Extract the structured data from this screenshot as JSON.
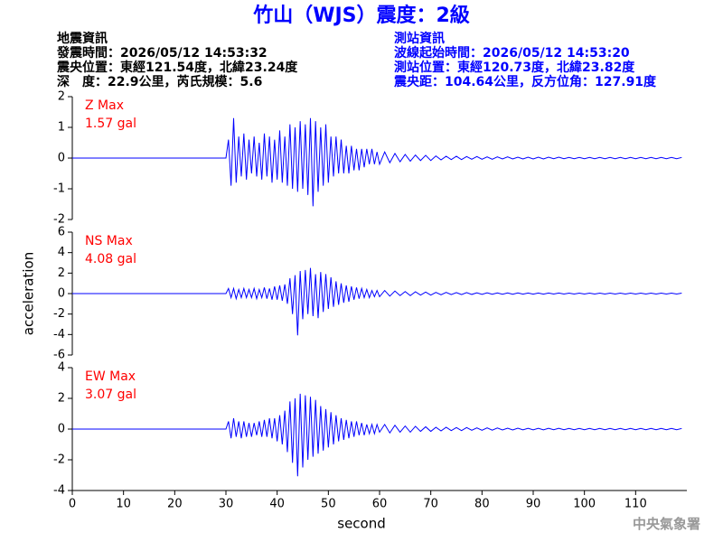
{
  "header": {
    "title": "竹山（WJS）震度：2級",
    "left": [
      "地震資訊",
      "發震時間：2026/05/12 14:53:32",
      "震央位置：東經121.54度，北緯23.24度",
      "深　度：22.9公里，芮氏規模：5.6"
    ],
    "right": [
      "測站資訊",
      "波線起始時間：2026/05/12 14:53:20",
      "測站位置：東經120.73度，北緯23.82度",
      "震央距：104.64公里，反方位角：127.91度"
    ],
    "footer": "中央氣象署"
  },
  "chart_data": [
    {
      "type": "line",
      "annotations": [
        "Z Max",
        "1.57 gal"
      ],
      "color": "#0000ff",
      "xlim": [
        0,
        120
      ],
      "ylim": [
        -2,
        2
      ],
      "yticks": [
        -2,
        -1,
        0,
        1,
        2
      ],
      "x": [
        0,
        30,
        30.5,
        31,
        31.5,
        32,
        32.5,
        33,
        33.5,
        34,
        34.5,
        35,
        35.5,
        36,
        36.5,
        37,
        37.5,
        38,
        38.5,
        39,
        39.5,
        40,
        40.5,
        41,
        41.5,
        42,
        42.5,
        43,
        43.5,
        44,
        44.5,
        45,
        45.5,
        46,
        46.5,
        47,
        47.5,
        48,
        48.5,
        49,
        49.5,
        50,
        50.5,
        51,
        51.5,
        52,
        52.5,
        53,
        53.5,
        54,
        54.5,
        55,
        55.5,
        56,
        56.5,
        57,
        57.5,
        58,
        58.5,
        59,
        59.5,
        60,
        61,
        62,
        63,
        64,
        65,
        66,
        67,
        68,
        69,
        70,
        71,
        72,
        73,
        74,
        75,
        76,
        77,
        78,
        79,
        80,
        81,
        82,
        83,
        84,
        85,
        86,
        87,
        88,
        89,
        90,
        91,
        92,
        93,
        94,
        95,
        96,
        97,
        98,
        99,
        100,
        101,
        102,
        103,
        104,
        105,
        106,
        107,
        108,
        109,
        110,
        111,
        112,
        113,
        114,
        115,
        116,
        117,
        118,
        119
      ],
      "values": [
        0,
        0,
        0.6,
        -0.9,
        1.3,
        -0.8,
        0.7,
        -0.6,
        0.8,
        -0.7,
        0.6,
        -0.5,
        0.7,
        -0.6,
        0.5,
        -0.7,
        0.8,
        -0.6,
        0.7,
        -0.8,
        0.6,
        -0.7,
        0.9,
        -0.8,
        0.7,
        -0.9,
        1.1,
        -1.0,
        1.0,
        -1.1,
        1.2,
        -1.0,
        1.1,
        -1.2,
        1.3,
        -1.57,
        1.2,
        -1.1,
        1.0,
        -0.9,
        1.1,
        -0.8,
        0.7,
        -0.6,
        0.7,
        -0.5,
        0.6,
        -0.5,
        0.4,
        -0.5,
        0.4,
        -0.4,
        0.3,
        -0.4,
        0.3,
        -0.3,
        0.3,
        -0.2,
        0.3,
        -0.2,
        0.2,
        -0.2,
        0.2,
        -0.15,
        0.15,
        -0.12,
        0.12,
        -0.1,
        0.1,
        -0.08,
        0.09,
        -0.08,
        0.07,
        -0.06,
        0.06,
        -0.05,
        0.06,
        -0.05,
        0.05,
        -0.04,
        0.05,
        -0.04,
        0.04,
        -0.04,
        0.04,
        -0.03,
        0.04,
        -0.03,
        0.03,
        -0.03,
        0.03,
        -0.03,
        0.03,
        -0.03,
        0.03,
        -0.02,
        0.03,
        -0.02,
        0.02,
        -0.02,
        0.02,
        -0.02,
        0.02,
        -0.02,
        0.02,
        -0.02,
        0.02,
        -0.02,
        0.02,
        -0.02,
        0.02,
        -0.02,
        0.02,
        -0.02,
        0.02,
        -0.02,
        0.02,
        -0.02,
        0.02,
        -0.02,
        0.02
      ]
    },
    {
      "type": "line",
      "annotations": [
        "NS Max",
        "4.08 gal"
      ],
      "color": "#0000ff",
      "ylabel": "acceleration",
      "xlim": [
        0,
        120
      ],
      "ylim": [
        -6,
        6
      ],
      "yticks": [
        -6,
        -4,
        -2,
        0,
        2,
        4,
        6
      ],
      "x": [
        0,
        30,
        30.5,
        31,
        31.5,
        32,
        32.5,
        33,
        33.5,
        34,
        34.5,
        35,
        35.5,
        36,
        36.5,
        37,
        37.5,
        38,
        38.5,
        39,
        39.5,
        40,
        40.5,
        41,
        41.5,
        42,
        42.5,
        43,
        43.5,
        44,
        44.5,
        45,
        45.5,
        46,
        46.5,
        47,
        47.5,
        48,
        48.5,
        49,
        49.5,
        50,
        50.5,
        51,
        51.5,
        52,
        52.5,
        53,
        53.5,
        54,
        54.5,
        55,
        55.5,
        56,
        56.5,
        57,
        57.5,
        58,
        58.5,
        59,
        59.5,
        60,
        61,
        62,
        63,
        64,
        65,
        66,
        67,
        68,
        69,
        70,
        71,
        72,
        73,
        74,
        75,
        76,
        77,
        78,
        79,
        80,
        81,
        82,
        83,
        84,
        85,
        86,
        87,
        88,
        89,
        90,
        91,
        92,
        93,
        94,
        95,
        96,
        97,
        98,
        99,
        100,
        101,
        102,
        103,
        104,
        105,
        106,
        107,
        108,
        109,
        110,
        111,
        112,
        113,
        114,
        115,
        116,
        117,
        118,
        119
      ],
      "values": [
        0,
        0,
        0.5,
        -0.4,
        0.5,
        -0.5,
        0.4,
        -0.4,
        0.5,
        -0.4,
        0.4,
        -0.4,
        0.5,
        -0.5,
        0.4,
        -0.4,
        0.6,
        -0.5,
        0.5,
        -0.6,
        0.7,
        -0.6,
        0.8,
        -0.7,
        0.9,
        -1.0,
        1.5,
        -2.0,
        1.8,
        -4.08,
        2.2,
        -2.5,
        2.3,
        -2.0,
        2.5,
        -2.2,
        1.9,
        -2.4,
        2.1,
        -1.8,
        1.9,
        -1.5,
        1.6,
        -1.3,
        1.2,
        -1.1,
        1.0,
        -0.9,
        0.8,
        -0.8,
        0.7,
        -0.6,
        0.6,
        -0.5,
        0.5,
        -0.4,
        0.4,
        -0.4,
        0.3,
        -0.3,
        0.3,
        -0.3,
        0.3,
        -0.25,
        0.25,
        -0.2,
        0.2,
        -0.2,
        0.18,
        -0.15,
        0.15,
        -0.15,
        0.12,
        -0.12,
        0.12,
        -0.1,
        0.1,
        -0.1,
        0.1,
        -0.08,
        0.08,
        -0.08,
        0.08,
        -0.07,
        0.07,
        -0.06,
        0.06,
        -0.06,
        0.06,
        -0.05,
        0.05,
        -0.05,
        0.05,
        -0.05,
        0.05,
        -0.04,
        0.05,
        -0.04,
        0.04,
        -0.04,
        0.04,
        -0.04,
        0.04,
        -0.04,
        0.04,
        -0.04,
        0.04,
        -0.04,
        0.04,
        -0.04,
        0.04,
        -0.04,
        0.04,
        -0.04,
        0.04,
        -0.04,
        0.04,
        -0.04,
        0.04,
        -0.04,
        0.04
      ]
    },
    {
      "type": "line",
      "annotations": [
        "EW Max",
        "3.07 gal"
      ],
      "color": "#0000ff",
      "xlabel": "second",
      "xlim": [
        0,
        120
      ],
      "xticks": [
        0,
        10,
        20,
        30,
        40,
        50,
        60,
        70,
        80,
        90,
        100,
        110
      ],
      "ylim": [
        -4,
        4
      ],
      "yticks": [
        -4,
        -2,
        0,
        2,
        4
      ],
      "x": [
        0,
        30,
        30.5,
        31,
        31.5,
        32,
        32.5,
        33,
        33.5,
        34,
        34.5,
        35,
        35.5,
        36,
        36.5,
        37,
        37.5,
        38,
        38.5,
        39,
        39.5,
        40,
        40.5,
        41,
        41.5,
        42,
        42.5,
        43,
        43.5,
        44,
        44.5,
        45,
        45.5,
        46,
        46.5,
        47,
        47.5,
        48,
        48.5,
        49,
        49.5,
        50,
        50.5,
        51,
        51.5,
        52,
        52.5,
        53,
        53.5,
        54,
        54.5,
        55,
        55.5,
        56,
        56.5,
        57,
        57.5,
        58,
        58.5,
        59,
        59.5,
        60,
        61,
        62,
        63,
        64,
        65,
        66,
        67,
        68,
        69,
        70,
        71,
        72,
        73,
        74,
        75,
        76,
        77,
        78,
        79,
        80,
        81,
        82,
        83,
        84,
        85,
        86,
        87,
        88,
        89,
        90,
        91,
        92,
        93,
        94,
        95,
        96,
        97,
        98,
        99,
        100,
        101,
        102,
        103,
        104,
        105,
        106,
        107,
        108,
        109,
        110,
        111,
        112,
        113,
        114,
        115,
        116,
        117,
        118,
        119
      ],
      "values": [
        0,
        0,
        0.5,
        -0.6,
        0.7,
        -0.5,
        0.5,
        -0.6,
        0.5,
        -0.5,
        0.4,
        -0.5,
        0.4,
        -0.4,
        0.5,
        -0.5,
        0.6,
        -0.5,
        0.7,
        -0.6,
        0.7,
        -0.8,
        0.9,
        -1.0,
        1.2,
        -1.5,
        1.8,
        -2.2,
        2.0,
        -3.07,
        2.3,
        -2.5,
        2.2,
        -2.0,
        2.1,
        -1.8,
        1.9,
        -1.6,
        1.5,
        -1.4,
        1.3,
        -1.2,
        1.1,
        -1.0,
        0.9,
        -0.8,
        0.7,
        -0.7,
        0.6,
        -0.6,
        0.5,
        -0.5,
        0.5,
        -0.4,
        0.4,
        -0.4,
        0.3,
        -0.3,
        0.3,
        -0.3,
        0.3,
        -0.2,
        0.3,
        -0.25,
        0.25,
        -0.2,
        0.2,
        -0.2,
        0.18,
        -0.15,
        0.15,
        -0.15,
        0.12,
        -0.12,
        0.12,
        -0.1,
        0.1,
        -0.1,
        0.1,
        -0.08,
        0.08,
        -0.08,
        0.08,
        -0.07,
        0.07,
        -0.06,
        0.06,
        -0.06,
        0.06,
        -0.05,
        0.05,
        -0.05,
        0.05,
        -0.05,
        0.05,
        -0.04,
        0.05,
        -0.04,
        0.04,
        -0.04,
        0.04,
        -0.04,
        0.04,
        -0.04,
        0.04,
        -0.04,
        0.04,
        -0.04,
        0.04,
        -0.04,
        0.04,
        -0.04,
        0.04,
        -0.04,
        0.04,
        -0.04,
        0.04,
        -0.04,
        0.04,
        -0.04,
        0.04
      ]
    }
  ]
}
